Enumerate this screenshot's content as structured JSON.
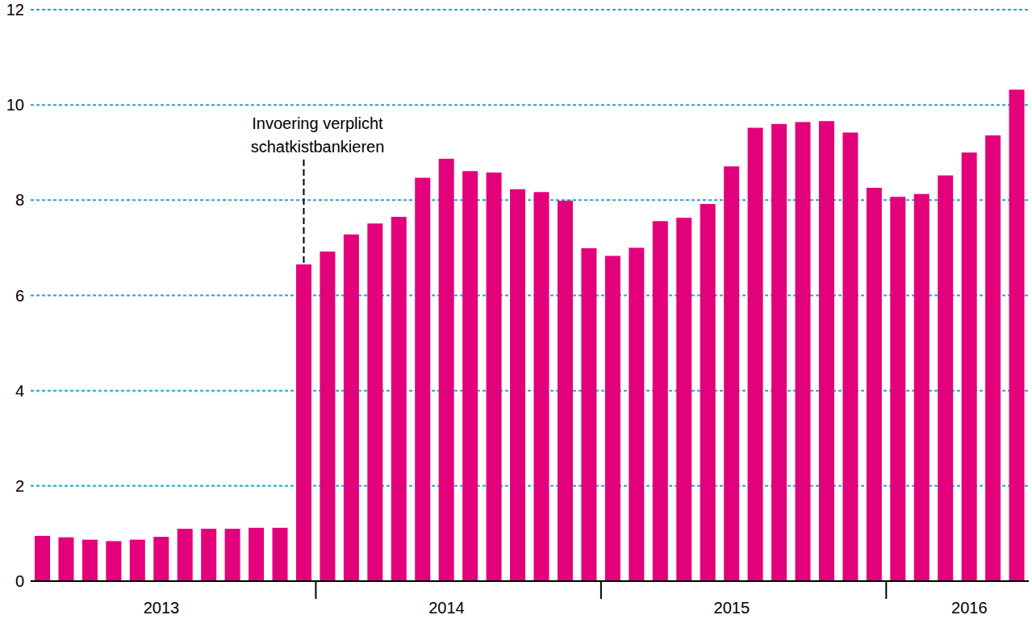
{
  "chart_data": {
    "type": "bar",
    "categories": [
      null,
      null,
      null,
      null,
      null,
      "2013",
      null,
      null,
      null,
      null,
      null,
      null,
      null,
      null,
      null,
      null,
      null,
      "2014",
      null,
      null,
      null,
      null,
      null,
      null,
      null,
      null,
      null,
      null,
      null,
      "2015",
      null,
      null,
      null,
      null,
      null,
      null,
      null,
      null,
      null,
      "2016",
      null,
      null
    ],
    "values": [
      0.95,
      0.92,
      0.87,
      0.84,
      0.87,
      0.93,
      1.1,
      1.1,
      1.1,
      1.12,
      1.12,
      6.65,
      6.92,
      7.28,
      7.51,
      7.65,
      8.47,
      8.87,
      8.61,
      8.58,
      8.23,
      8.17,
      7.99,
      6.99,
      6.83,
      7.0,
      7.56,
      7.63,
      7.92,
      8.71,
      9.52,
      9.6,
      9.64,
      9.66,
      9.42,
      8.26,
      8.07,
      8.13,
      8.52,
      9.0,
      9.36,
      10.32
    ],
    "color": "#e3007b",
    "ylim": [
      0,
      12
    ],
    "yticks": [
      0,
      2,
      4,
      6,
      8,
      10,
      12
    ],
    "grid": true,
    "annotations": [
      {
        "text": "Invoering verplicht schatkistbankieren",
        "index": 11
      }
    ]
  }
}
